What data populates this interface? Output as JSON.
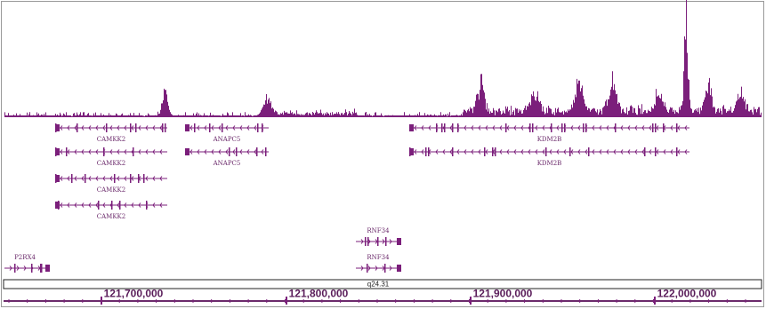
{
  "genes": [
    {
      "label": "CAMKK2"
    },
    {
      "label": "CAMKK2"
    },
    {
      "label": "CAMKK2"
    },
    {
      "label": "CAMKK2"
    },
    {
      "label": "ANAPC5"
    },
    {
      "label": "ANAPC5"
    },
    {
      "label": "KDM2B"
    },
    {
      "label": "KDM2B"
    },
    {
      "label": "RNF34"
    },
    {
      "label": "RNF34"
    },
    {
      "label": "P2RX4"
    }
  ],
  "ruler": {
    "band": "q24.31",
    "ticks": [
      "121,700,000",
      "121,800,000",
      "121,900,000",
      "122,000,000"
    ]
  }
}
